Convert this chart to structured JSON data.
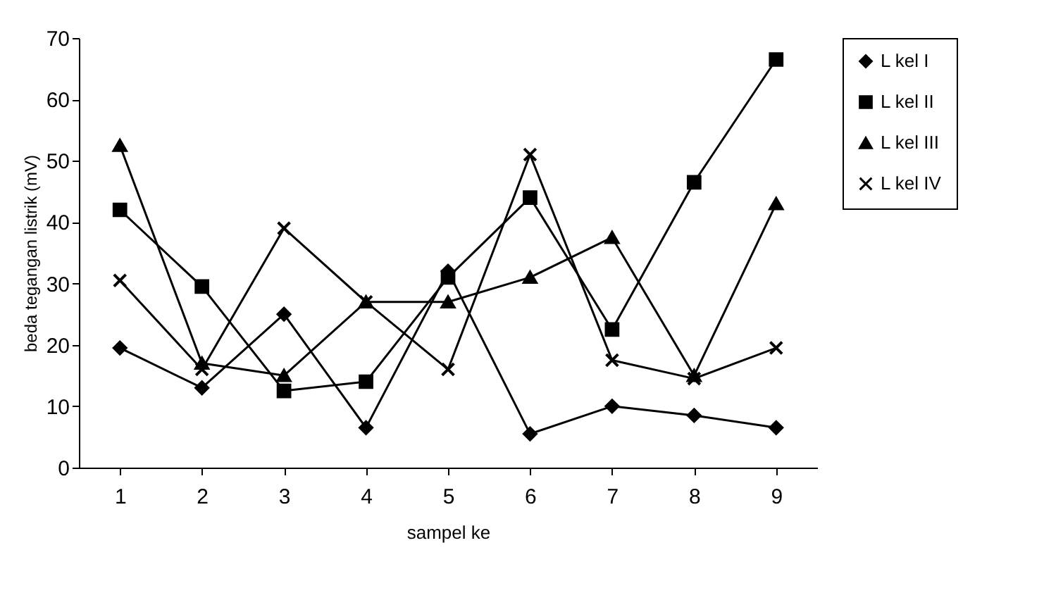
{
  "chart_data": {
    "type": "line",
    "xlabel": "sampel ke",
    "ylabel": "beda tegangan listrik (mV)",
    "categories": [
      "1",
      "2",
      "3",
      "4",
      "5",
      "6",
      "7",
      "8",
      "9"
    ],
    "series": [
      {
        "name": "L kel I",
        "color": "#000000",
        "marker": "diamond",
        "values": [
          19.5,
          13,
          25,
          6.5,
          32,
          5.5,
          10,
          8.5,
          6.5
        ]
      },
      {
        "name": "L kel II",
        "color": "#000000",
        "marker": "square",
        "values": [
          42,
          29.5,
          12.5,
          14,
          31,
          44,
          22.5,
          46.5,
          66.5
        ]
      },
      {
        "name": "L kel III",
        "color": "#000000",
        "marker": "triangle",
        "values": [
          52.5,
          17,
          15,
          27,
          27,
          31,
          37.5,
          15,
          43
        ]
      },
      {
        "name": "L kel IV",
        "color": "#000000",
        "marker": "cross",
        "values": [
          30.5,
          16,
          39,
          27,
          16,
          51,
          17.5,
          14.5,
          19.5
        ]
      }
    ],
    "ylim": [
      0,
      70
    ],
    "yticks": [
      0,
      10,
      20,
      30,
      40,
      50,
      60,
      70
    ],
    "grid": false,
    "legend": "right"
  }
}
